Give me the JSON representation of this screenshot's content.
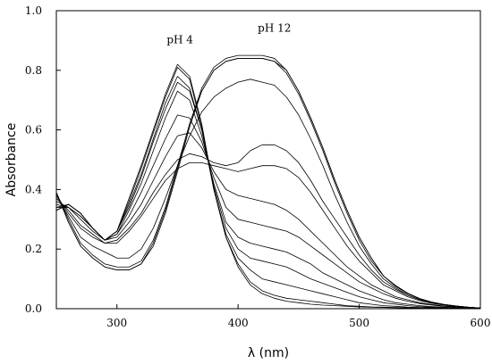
{
  "chart_data": {
    "type": "line",
    "title": "",
    "xlabel": "λ (nm)",
    "ylabel": "Absorbance",
    "xlim": [
      250,
      600
    ],
    "ylim": [
      0,
      1.0
    ],
    "x_ticks": [
      {
        "value": 300,
        "label": "300"
      },
      {
        "value": 400,
        "label": "400"
      },
      {
        "value": 500,
        "label": "500"
      },
      {
        "value": 600,
        "label": "600"
      }
    ],
    "y_ticks": [
      {
        "value": 0.0,
        "label": "0.0"
      },
      {
        "value": 0.2,
        "label": "0.2"
      },
      {
        "value": 0.4,
        "label": "0.4"
      },
      {
        "value": 0.6,
        "label": "0.6"
      },
      {
        "value": 0.8,
        "label": "0.8"
      },
      {
        "value": 1.0,
        "label": "1.0"
      }
    ],
    "grid": false,
    "legend": "none",
    "annotations": [
      {
        "text": "pH 4",
        "x": 352,
        "y": 0.89
      },
      {
        "text": "pH 12",
        "x": 430,
        "y": 0.93
      }
    ],
    "x": [
      250,
      260,
      270,
      280,
      290,
      300,
      310,
      320,
      330,
      340,
      350,
      360,
      370,
      380,
      390,
      400,
      410,
      420,
      430,
      440,
      450,
      460,
      470,
      480,
      490,
      500,
      510,
      520,
      530,
      540,
      550,
      560,
      570,
      580,
      590,
      600
    ],
    "series": [
      {
        "values": [
          0.33,
          0.35,
          0.32,
          0.27,
          0.23,
          0.26,
          0.37,
          0.48,
          0.6,
          0.72,
          0.82,
          0.78,
          0.62,
          0.4,
          0.24,
          0.14,
          0.08,
          0.05,
          0.035,
          0.025,
          0.02,
          0.015,
          0.012,
          0.01,
          0.008,
          0.006,
          0.005,
          0.004,
          0.003,
          0.002,
          0.002,
          0.001,
          0.001,
          0.001,
          0.0,
          0.0
        ]
      },
      {
        "values": [
          0.33,
          0.35,
          0.32,
          0.27,
          0.23,
          0.26,
          0.36,
          0.47,
          0.59,
          0.71,
          0.81,
          0.77,
          0.61,
          0.4,
          0.24,
          0.15,
          0.09,
          0.06,
          0.045,
          0.035,
          0.03,
          0.025,
          0.02,
          0.015,
          0.01,
          0.008,
          0.006,
          0.005,
          0.004,
          0.003,
          0.002,
          0.002,
          0.001,
          0.001,
          0.0,
          0.0
        ]
      },
      {
        "values": [
          0.33,
          0.35,
          0.32,
          0.27,
          0.23,
          0.26,
          0.35,
          0.45,
          0.57,
          0.69,
          0.78,
          0.74,
          0.6,
          0.4,
          0.25,
          0.17,
          0.13,
          0.1,
          0.09,
          0.08,
          0.07,
          0.06,
          0.05,
          0.04,
          0.03,
          0.02,
          0.015,
          0.01,
          0.008,
          0.005,
          0.004,
          0.003,
          0.002,
          0.001,
          0.001,
          0.0
        ]
      },
      {
        "values": [
          0.34,
          0.35,
          0.32,
          0.27,
          0.23,
          0.26,
          0.34,
          0.44,
          0.56,
          0.67,
          0.76,
          0.73,
          0.6,
          0.41,
          0.27,
          0.2,
          0.17,
          0.16,
          0.15,
          0.14,
          0.12,
          0.1,
          0.085,
          0.07,
          0.055,
          0.04,
          0.03,
          0.02,
          0.015,
          0.01,
          0.007,
          0.005,
          0.003,
          0.002,
          0.001,
          0.0
        ]
      },
      {
        "values": [
          0.34,
          0.34,
          0.31,
          0.27,
          0.23,
          0.25,
          0.33,
          0.42,
          0.53,
          0.64,
          0.73,
          0.7,
          0.58,
          0.42,
          0.29,
          0.24,
          0.22,
          0.21,
          0.2,
          0.19,
          0.17,
          0.15,
          0.12,
          0.1,
          0.08,
          0.06,
          0.045,
          0.03,
          0.02,
          0.015,
          0.01,
          0.007,
          0.005,
          0.003,
          0.002,
          0.0
        ]
      },
      {
        "values": [
          0.35,
          0.34,
          0.31,
          0.27,
          0.23,
          0.25,
          0.31,
          0.39,
          0.48,
          0.57,
          0.65,
          0.64,
          0.56,
          0.44,
          0.34,
          0.3,
          0.29,
          0.28,
          0.27,
          0.26,
          0.24,
          0.21,
          0.18,
          0.15,
          0.12,
          0.09,
          0.07,
          0.05,
          0.035,
          0.025,
          0.017,
          0.012,
          0.008,
          0.005,
          0.003,
          0.001
        ]
      },
      {
        "values": [
          0.36,
          0.34,
          0.3,
          0.26,
          0.23,
          0.24,
          0.29,
          0.35,
          0.43,
          0.51,
          0.58,
          0.59,
          0.54,
          0.46,
          0.4,
          0.38,
          0.37,
          0.36,
          0.35,
          0.33,
          0.3,
          0.26,
          0.22,
          0.18,
          0.14,
          0.11,
          0.08,
          0.06,
          0.04,
          0.03,
          0.02,
          0.014,
          0.009,
          0.006,
          0.003,
          0.001
        ]
      },
      {
        "values": [
          0.37,
          0.33,
          0.28,
          0.25,
          0.22,
          0.23,
          0.27,
          0.32,
          0.39,
          0.45,
          0.5,
          0.52,
          0.51,
          0.49,
          0.48,
          0.49,
          0.53,
          0.55,
          0.55,
          0.53,
          0.49,
          0.43,
          0.36,
          0.3,
          0.24,
          0.18,
          0.13,
          0.09,
          0.065,
          0.045,
          0.03,
          0.02,
          0.013,
          0.008,
          0.004,
          0.002
        ]
      },
      {
        "values": [
          0.38,
          0.32,
          0.27,
          0.24,
          0.22,
          0.22,
          0.26,
          0.31,
          0.37,
          0.43,
          0.47,
          0.49,
          0.49,
          0.48,
          0.47,
          0.46,
          0.47,
          0.48,
          0.48,
          0.47,
          0.44,
          0.39,
          0.33,
          0.27,
          0.21,
          0.16,
          0.12,
          0.08,
          0.06,
          0.04,
          0.027,
          0.018,
          0.012,
          0.007,
          0.004,
          0.002
        ]
      },
      {
        "values": [
          0.38,
          0.31,
          0.24,
          0.21,
          0.19,
          0.17,
          0.17,
          0.2,
          0.27,
          0.37,
          0.48,
          0.58,
          0.66,
          0.71,
          0.74,
          0.76,
          0.77,
          0.76,
          0.75,
          0.71,
          0.65,
          0.57,
          0.48,
          0.38,
          0.29,
          0.21,
          0.15,
          0.1,
          0.07,
          0.045,
          0.03,
          0.02,
          0.013,
          0.008,
          0.004,
          0.002
        ]
      },
      {
        "values": [
          0.39,
          0.3,
          0.22,
          0.18,
          0.15,
          0.14,
          0.14,
          0.16,
          0.23,
          0.34,
          0.48,
          0.62,
          0.73,
          0.8,
          0.83,
          0.84,
          0.84,
          0.84,
          0.83,
          0.79,
          0.72,
          0.63,
          0.53,
          0.42,
          0.32,
          0.23,
          0.16,
          0.11,
          0.075,
          0.05,
          0.033,
          0.022,
          0.014,
          0.009,
          0.005,
          0.002
        ]
      },
      {
        "values": [
          0.39,
          0.29,
          0.21,
          0.17,
          0.14,
          0.13,
          0.13,
          0.15,
          0.22,
          0.33,
          0.47,
          0.62,
          0.74,
          0.81,
          0.84,
          0.85,
          0.85,
          0.85,
          0.84,
          0.8,
          0.73,
          0.64,
          0.54,
          0.43,
          0.33,
          0.24,
          0.17,
          0.11,
          0.078,
          0.052,
          0.034,
          0.022,
          0.014,
          0.009,
          0.005,
          0.002
        ]
      },
      {
        "values": [
          0.39,
          0.29,
          0.21,
          0.17,
          0.14,
          0.13,
          0.13,
          0.15,
          0.21,
          0.32,
          0.46,
          0.61,
          0.73,
          0.8,
          0.83,
          0.84,
          0.84,
          0.84,
          0.83,
          0.8,
          0.73,
          0.64,
          0.54,
          0.43,
          0.33,
          0.24,
          0.17,
          0.11,
          0.076,
          0.05,
          0.033,
          0.021,
          0.014,
          0.009,
          0.005,
          0.002
        ]
      }
    ]
  }
}
